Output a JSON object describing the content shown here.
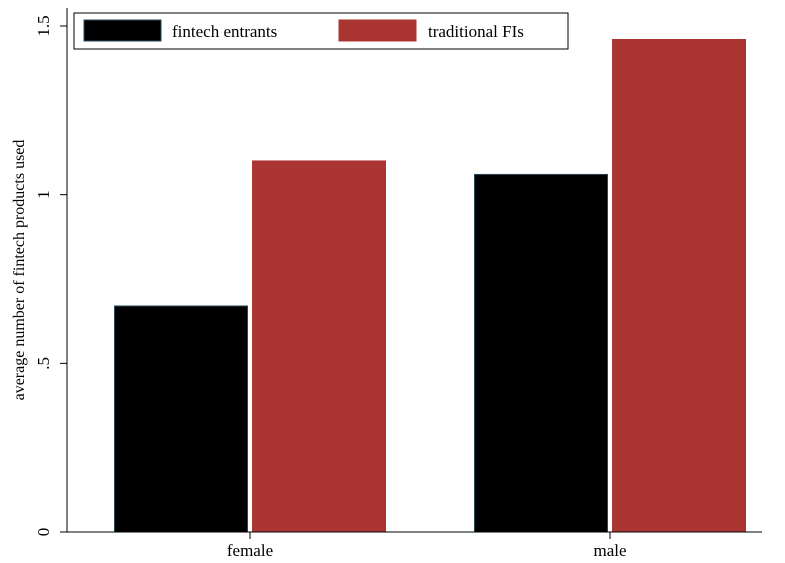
{
  "chart_data": {
    "type": "bar",
    "categories": [
      "female",
      "male"
    ],
    "series": [
      {
        "name": "fintech entrants",
        "values": [
          0.67,
          1.06
        ]
      },
      {
        "name": "traditional FIs",
        "values": [
          1.1,
          1.46
        ]
      }
    ],
    "ylabel": "average number of fintech products used",
    "xlabel": "",
    "ylim": [
      0,
      1.5
    ],
    "yticks": [
      {
        "value": 0,
        "label": "0"
      },
      {
        "value": 0.5,
        "label": ".5"
      },
      {
        "value": 1,
        "label": "1"
      },
      {
        "value": 1.5,
        "label": "1.5"
      }
    ],
    "legend_placement": "top-left",
    "grid": false,
    "colors": [
      "#000000",
      "#ab3532"
    ]
  }
}
